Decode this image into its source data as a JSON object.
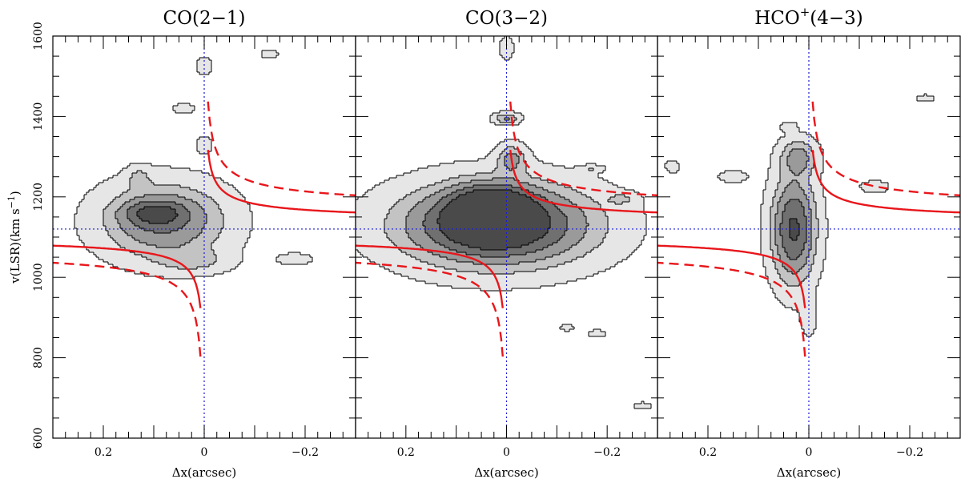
{
  "chart_data": {
    "type": "contour",
    "ylabel": "v(LSR)(km s",
    "ylabel_sup": "−1",
    "ylabel_close": ")",
    "xlabel": "Δx(arcsec)",
    "xlim": [
      0.3,
      -0.3
    ],
    "ylim": [
      600,
      1600
    ],
    "x_ticks": [
      0.2,
      0,
      -0.2
    ],
    "x_tick_labels": [
      "0.2",
      "0",
      "−0.2"
    ],
    "y_ticks": [
      600,
      800,
      1000,
      1200,
      1400,
      1600
    ],
    "y_tick_labels": [
      "600",
      "800",
      "1000",
      "1200",
      "1400",
      "1600"
    ],
    "systemic_velocity": 1120,
    "center_offset": 0,
    "curve_colors": {
      "model": "#e8161b",
      "reference": "#1b1bd6"
    },
    "panels": [
      {
        "title": "CO(2−1)",
        "title_main": "CO(2−1)",
        "title_sup": "",
        "title_tail": "",
        "blobs": [
          {
            "x": 0.08,
            "v": 1140,
            "sx": 0.085,
            "sv": 65,
            "peak": 3
          },
          {
            "x": 0.1,
            "v": 1160,
            "sx": 0.04,
            "sv": 20,
            "peak": 2
          },
          {
            "x": 0.02,
            "v": 1040,
            "sx": 0.05,
            "sv": 20,
            "peak": 1
          },
          {
            "x": -0.18,
            "v": 1045,
            "sx": 0.025,
            "sv": 10,
            "peak": 1
          },
          {
            "x": 0.13,
            "v": 1250,
            "sx": 0.015,
            "sv": 18,
            "peak": 1
          },
          {
            "x": 0.04,
            "v": 1420,
            "sx": 0.015,
            "sv": 8,
            "peak": 1
          },
          {
            "x": 0.0,
            "v": 1525,
            "sx": 0.01,
            "sv": 15,
            "peak": 1
          },
          {
            "x": -0.13,
            "v": 1555,
            "sx": 0.012,
            "sv": 7,
            "peak": 1
          },
          {
            "x": 0.0,
            "v": 1330,
            "sx": 0.01,
            "sv": 15,
            "peak": 1
          }
        ]
      },
      {
        "title": "CO(3−2)",
        "title_main": "CO(3−2)",
        "title_sup": "",
        "title_tail": "",
        "blobs": [
          {
            "x": 0.02,
            "v": 1130,
            "sx": 0.13,
            "sv": 70,
            "peak": 5
          },
          {
            "x": 0.03,
            "v": 1160,
            "sx": 0.05,
            "sv": 40,
            "peak": 5
          },
          {
            "x": -0.01,
            "v": 1295,
            "sx": 0.02,
            "sv": 25,
            "peak": 2
          },
          {
            "x": 0.0,
            "v": 1395,
            "sx": 0.018,
            "sv": 10,
            "peak": 2
          },
          {
            "x": 0.0,
            "v": 1570,
            "sx": 0.01,
            "sv": 20,
            "peak": 1
          },
          {
            "x": -0.23,
            "v": 1195,
            "sx": 0.02,
            "sv": 10,
            "peak": 1
          },
          {
            "x": -0.17,
            "v": 1270,
            "sx": 0.015,
            "sv": 6,
            "peak": 1
          },
          {
            "x": -0.18,
            "v": 860,
            "sx": 0.012,
            "sv": 6,
            "peak": 1
          },
          {
            "x": -0.27,
            "v": 680,
            "sx": 0.012,
            "sv": 6,
            "peak": 1
          },
          {
            "x": -0.12,
            "v": 875,
            "sx": 0.01,
            "sv": 5,
            "peak": 1
          }
        ]
      },
      {
        "title": "HCO+(4−3)",
        "title_main": "HCO",
        "title_sup": "+",
        "title_tail": "(4−3)",
        "blobs": [
          {
            "x": 0.03,
            "v": 1120,
            "sx": 0.03,
            "sv": 90,
            "peak": 4
          },
          {
            "x": 0.02,
            "v": 1300,
            "sx": 0.025,
            "sv": 30,
            "peak": 2
          },
          {
            "x": 0.0,
            "v": 900,
            "sx": 0.01,
            "sv": 30,
            "peak": 1
          },
          {
            "x": 0.15,
            "v": 1250,
            "sx": 0.02,
            "sv": 10,
            "peak": 1
          },
          {
            "x": -0.13,
            "v": 1225,
            "sx": 0.02,
            "sv": 10,
            "peak": 1
          },
          {
            "x": -0.23,
            "v": 1445,
            "sx": 0.012,
            "sv": 6,
            "peak": 1
          },
          {
            "x": 0.04,
            "v": 1375,
            "sx": 0.01,
            "sv": 8,
            "peak": 1
          },
          {
            "x": 0.27,
            "v": 1275,
            "sx": 0.01,
            "sv": 10,
            "peak": 1
          }
        ]
      }
    ]
  }
}
